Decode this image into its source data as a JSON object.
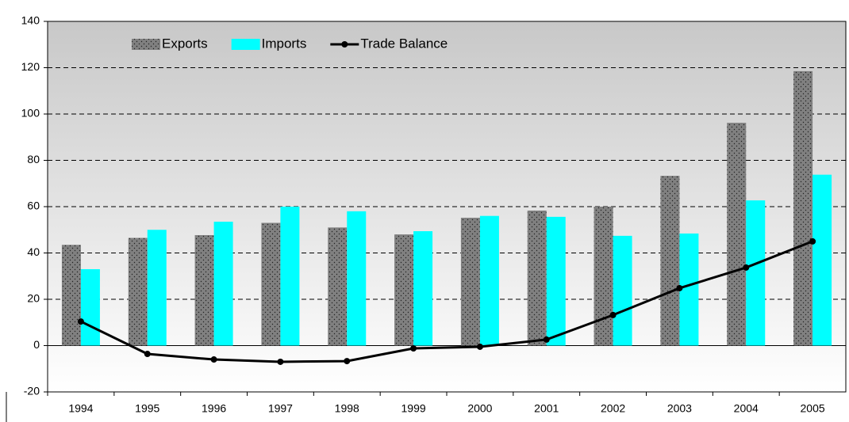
{
  "chart_data": {
    "type": "bar-line",
    "categories": [
      "1994",
      "1995",
      "1996",
      "1997",
      "1998",
      "1999",
      "2000",
      "2001",
      "2002",
      "2003",
      "2004",
      "2005"
    ],
    "series": [
      {
        "name": "Exports",
        "type": "bar",
        "color": "#808080",
        "values": [
          43.5,
          46.5,
          47.7,
          53,
          51,
          48,
          55.2,
          58.3,
          60,
          73.3,
          96.2,
          118.5
        ]
      },
      {
        "name": "Imports",
        "type": "bar",
        "color": "#00ffff",
        "values": [
          33,
          50,
          53.5,
          60,
          58,
          49.4,
          56,
          55.6,
          47.4,
          48.4,
          62.7,
          73.8
        ]
      },
      {
        "name": "Trade Balance",
        "type": "line",
        "color": "#000000",
        "values": [
          10.4,
          -3.6,
          -6,
          -7,
          -6.7,
          -1.2,
          -0.5,
          2.6,
          13.2,
          24.8,
          33.7,
          45
        ]
      }
    ],
    "ylim": [
      -20,
      140
    ],
    "yticks": [
      -20,
      0,
      20,
      40,
      60,
      80,
      100,
      120,
      140
    ],
    "grid": true,
    "legend": "top-left"
  }
}
